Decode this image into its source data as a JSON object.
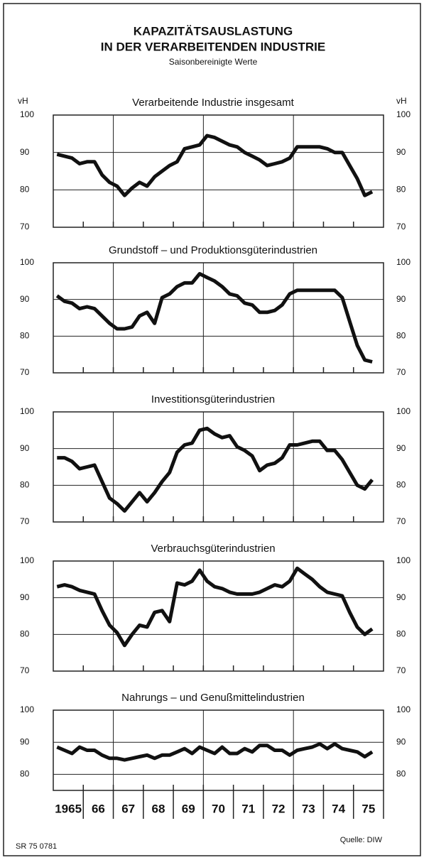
{
  "title": [
    "KAPAZITÄTSAUSLASTUNG",
    "IN DER VERARBEITENDEN INDUSTRIE"
  ],
  "subtitle": "Saisonbereinigte Werte",
  "code": "SR 75 0781",
  "source": "Quelle: DIW",
  "chart_data": [
    {
      "type": "line",
      "title": "Verarbeitende Industrie insgesamt",
      "y_label": "vH",
      "color": "#111111",
      "x": [
        1965.125,
        1965.375,
        1965.625,
        1965.875,
        1966.125,
        1966.375,
        1966.625,
        1966.875,
        1967.125,
        1967.375,
        1967.625,
        1967.875,
        1968.125,
        1968.375,
        1968.625,
        1968.875,
        1969.125,
        1969.375,
        1969.625,
        1969.875,
        1970.125,
        1970.375,
        1970.625,
        1970.875,
        1971.125,
        1971.375,
        1971.625,
        1971.875,
        1972.125,
        1972.375,
        1972.625,
        1972.875,
        1973.125,
        1973.375,
        1973.625,
        1973.875,
        1974.125,
        1974.375,
        1974.625,
        1974.875,
        1975.125,
        1975.375,
        1975.625
      ],
      "values": [
        89.5,
        89,
        88.5,
        87,
        87.5,
        87.5,
        84,
        82,
        81,
        78.5,
        80.5,
        82,
        81,
        83.5,
        85,
        86.5,
        87.5,
        91,
        91.5,
        92,
        94.5,
        94,
        93,
        92,
        91.5,
        90,
        89,
        88,
        86.5,
        87,
        87.5,
        88.5,
        91.5,
        91.5,
        91.5,
        91.5,
        91,
        90,
        90,
        86.5,
        83,
        78.5,
        79.5
      ],
      "xlim": [
        1965,
        1976
      ],
      "xgrid": [
        1967,
        1970,
        1973
      ],
      "ylim": [
        70,
        100
      ],
      "yticks": [
        70,
        80,
        90,
        100
      ],
      "grid": true
    },
    {
      "type": "line",
      "title": "Grundstoff – und Produktionsgüterindustrien",
      "color": "#111111",
      "x": [
        1965.125,
        1965.375,
        1965.625,
        1965.875,
        1966.125,
        1966.375,
        1966.625,
        1966.875,
        1967.125,
        1967.375,
        1967.625,
        1967.875,
        1968.125,
        1968.375,
        1968.625,
        1968.875,
        1969.125,
        1969.375,
        1969.625,
        1969.875,
        1970.125,
        1970.375,
        1970.625,
        1970.875,
        1971.125,
        1971.375,
        1971.625,
        1971.875,
        1972.125,
        1972.375,
        1972.625,
        1972.875,
        1973.125,
        1973.375,
        1973.625,
        1973.875,
        1974.125,
        1974.375,
        1974.625,
        1974.875,
        1975.125,
        1975.375,
        1975.625
      ],
      "values": [
        91,
        89.5,
        89,
        87.5,
        88,
        87.5,
        85.5,
        83.5,
        82,
        82,
        82.5,
        85.5,
        86.5,
        83.5,
        90.5,
        91.5,
        93.5,
        94.5,
        94.5,
        97,
        96,
        95,
        93.5,
        91.5,
        91,
        89,
        88.5,
        86.5,
        86.5,
        87,
        88.5,
        91.5,
        92.5,
        92.5,
        92.5,
        92.5,
        92.5,
        92.5,
        90.5,
        84,
        77.5,
        73.5,
        73
      ],
      "xlim": [
        1965,
        1976
      ],
      "xgrid": [
        1967,
        1970,
        1973
      ],
      "ylim": [
        70,
        100
      ],
      "yticks": [
        70,
        80,
        90,
        100
      ],
      "grid": true
    },
    {
      "type": "line",
      "title": "Investitionsgüterindustrien",
      "color": "#111111",
      "x": [
        1965.125,
        1965.375,
        1965.625,
        1965.875,
        1966.125,
        1966.375,
        1966.625,
        1966.875,
        1967.125,
        1967.375,
        1967.625,
        1967.875,
        1968.125,
        1968.375,
        1968.625,
        1968.875,
        1969.125,
        1969.375,
        1969.625,
        1969.875,
        1970.125,
        1970.375,
        1970.625,
        1970.875,
        1971.125,
        1971.375,
        1971.625,
        1971.875,
        1972.125,
        1972.375,
        1972.625,
        1972.875,
        1973.125,
        1973.375,
        1973.625,
        1973.875,
        1974.125,
        1974.375,
        1974.625,
        1974.875,
        1975.125,
        1975.375,
        1975.625
      ],
      "values": [
        87.5,
        87.5,
        86.5,
        84.5,
        85,
        85.5,
        81,
        76.5,
        75,
        73,
        75.5,
        78,
        75.5,
        78,
        81,
        83.5,
        89,
        91,
        91.5,
        95,
        95.5,
        94,
        93,
        93.5,
        90.5,
        89.5,
        88,
        84,
        85.5,
        86,
        87.5,
        91,
        91,
        91.5,
        92,
        92,
        89.5,
        89.5,
        87,
        83.5,
        80,
        79,
        81.5
      ],
      "xlim": [
        1965,
        1976
      ],
      "xgrid": [
        1967,
        1970,
        1973
      ],
      "ylim": [
        70,
        100
      ],
      "yticks": [
        70,
        80,
        90,
        100
      ],
      "grid": true
    },
    {
      "type": "line",
      "title": "Verbrauchsgüterindustrien",
      "color": "#111111",
      "x": [
        1965.125,
        1965.375,
        1965.625,
        1965.875,
        1966.125,
        1966.375,
        1966.625,
        1966.875,
        1967.125,
        1967.375,
        1967.625,
        1967.875,
        1968.125,
        1968.375,
        1968.625,
        1968.875,
        1969.125,
        1969.375,
        1969.625,
        1969.875,
        1970.125,
        1970.375,
        1970.625,
        1970.875,
        1971.125,
        1971.375,
        1971.625,
        1971.875,
        1972.125,
        1972.375,
        1972.625,
        1972.875,
        1973.125,
        1973.375,
        1973.625,
        1973.875,
        1974.125,
        1974.375,
        1974.625,
        1974.875,
        1975.125,
        1975.375,
        1975.625
      ],
      "values": [
        93,
        93.5,
        93,
        92,
        91.5,
        91,
        86.5,
        82.5,
        80.5,
        77,
        80,
        82.5,
        82,
        86,
        86.5,
        83.5,
        94,
        93.5,
        94.5,
        97.5,
        94.5,
        93,
        92.5,
        91.5,
        91,
        91,
        91,
        91.5,
        92.5,
        93.5,
        93,
        94.5,
        98,
        96.5,
        95,
        93,
        91.5,
        91,
        90.5,
        86,
        82,
        80,
        81.5
      ],
      "xlim": [
        1965,
        1976
      ],
      "xgrid": [
        1967,
        1970,
        1973
      ],
      "ylim": [
        70,
        100
      ],
      "yticks": [
        70,
        80,
        90,
        100
      ],
      "grid": true
    },
    {
      "type": "line",
      "title": "Nahrungs – und Genußmittelindustrien",
      "color": "#111111",
      "x": [
        1965.125,
        1965.375,
        1965.625,
        1965.875,
        1966.125,
        1966.375,
        1966.625,
        1966.875,
        1967.125,
        1967.375,
        1967.625,
        1967.875,
        1968.125,
        1968.375,
        1968.625,
        1968.875,
        1969.125,
        1969.375,
        1969.625,
        1969.875,
        1970.125,
        1970.375,
        1970.625,
        1970.875,
        1971.125,
        1971.375,
        1971.625,
        1971.875,
        1972.125,
        1972.375,
        1972.625,
        1972.875,
        1973.125,
        1973.375,
        1973.625,
        1973.875,
        1974.125,
        1974.375,
        1974.625,
        1974.875,
        1975.125,
        1975.375,
        1975.625
      ],
      "values": [
        88.5,
        87.5,
        86.5,
        88.5,
        87.5,
        87.5,
        86,
        85,
        85,
        84.5,
        85,
        85.5,
        86,
        85,
        86,
        86,
        87,
        88,
        86.5,
        88.5,
        87.5,
        86.5,
        88.5,
        86.5,
        86.5,
        88,
        87,
        89,
        89,
        87.5,
        87.5,
        86,
        87.5,
        88,
        88.5,
        89.5,
        88,
        89.5,
        88,
        87.5,
        87,
        85.5,
        87
      ],
      "xlim": [
        1965,
        1976
      ],
      "xgrid": [
        1967,
        1970,
        1973
      ],
      "ylim": [
        75,
        100
      ],
      "yticks": [
        80,
        90,
        100
      ],
      "grid": true,
      "xticks": [
        {
          "value": 1965.5,
          "label": "1965"
        },
        {
          "value": 1966.5,
          "label": "66"
        },
        {
          "value": 1967.5,
          "label": "67"
        },
        {
          "value": 1968.5,
          "label": "68"
        },
        {
          "value": 1969.5,
          "label": "69"
        },
        {
          "value": 1970.5,
          "label": "70"
        },
        {
          "value": 1971.5,
          "label": "71"
        },
        {
          "value": 1972.5,
          "label": "72"
        },
        {
          "value": 1973.5,
          "label": "73"
        },
        {
          "value": 1974.5,
          "label": "74"
        },
        {
          "value": 1975.5,
          "label": "75"
        }
      ]
    }
  ]
}
